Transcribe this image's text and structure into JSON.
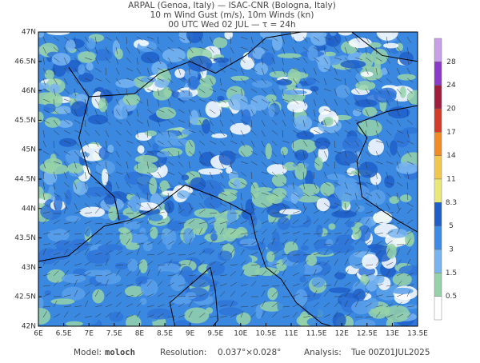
{
  "header": {
    "lines": [
      "ARPAL (Genoa, Italy)  —  ISAC-CNR (Bologna, Italy)",
      "10 m Wind Gust (m/s), 10m Winds (kn)",
      "00 UTC Wed 02 JUL  —  τ = 24h"
    ]
  },
  "map": {
    "lat_labels": [
      "47N",
      "46.5N",
      "46N",
      "45.5N",
      "45N",
      "44.5N",
      "44N",
      "43.5N",
      "43N",
      "42.5N",
      "42N"
    ],
    "lon_labels": [
      "6E",
      "6.5E",
      "7E",
      "7.5E",
      "8E",
      "8.5E",
      "9E",
      "9.5E",
      "10E",
      "10.5E",
      "11E",
      "11.5E",
      "12E",
      "12.5E",
      "13E",
      "13.5E"
    ]
  },
  "colorbar": {
    "labels": [
      28,
      24,
      20,
      17,
      14,
      11,
      8.3,
      5,
      3,
      1.5,
      0.5
    ],
    "colors": [
      "#c8a0e8",
      "#8a3cc8",
      "#a01e3c",
      "#d23c28",
      "#f08c28",
      "#f0c850",
      "#e8e878",
      "#1e5fc8",
      "#3c8ce6",
      "#78b4f0",
      "#96d2a8",
      "#ffffff"
    ]
  },
  "footer": {
    "model_label": "Model:",
    "model": "moloch",
    "resolution_label": "Resolution:",
    "resolution": "0.037°×0.028°",
    "analysis_label": "Analysis:",
    "analysis": "Tue 00Z01JUL2025"
  }
}
